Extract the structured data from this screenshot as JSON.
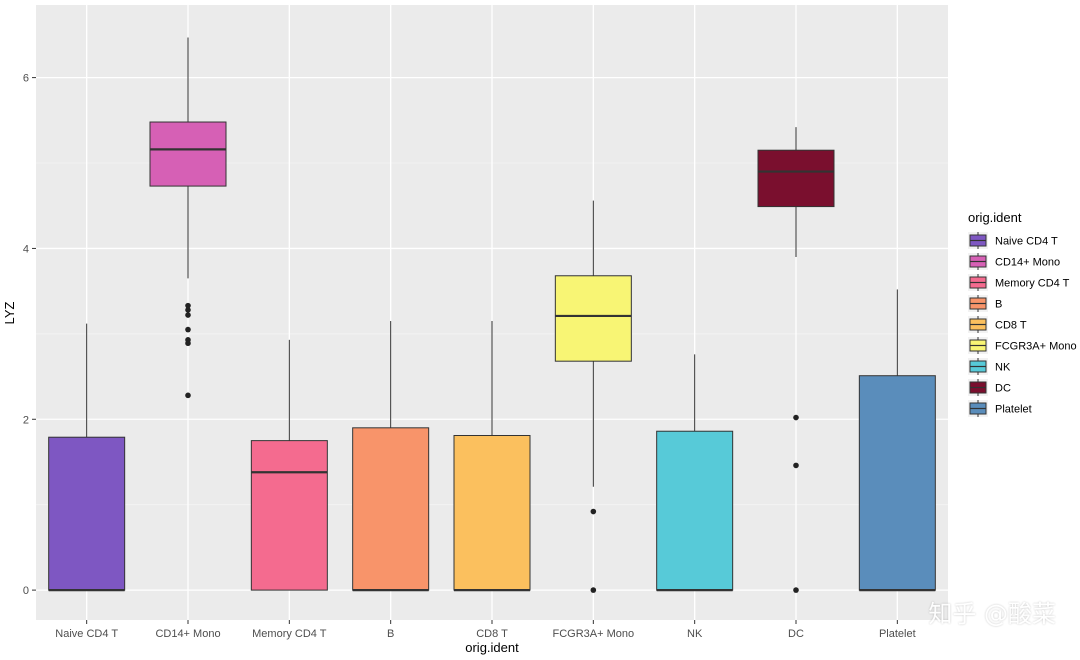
{
  "chart_data": {
    "type": "boxplot",
    "xlabel": "orig.ident",
    "ylabel": "LYZ",
    "ylim": [
      -0.35,
      6.85
    ],
    "yticks": [
      0,
      2,
      4,
      6
    ],
    "grid": true,
    "legend": {
      "title": "orig.ident",
      "placement": "right"
    },
    "categories": [
      "Naive CD4 T",
      "CD14+ Mono",
      "Memory CD4 T",
      "B",
      "CD8 T",
      "FCGR3A+ Mono",
      "NK",
      "DC",
      "Platelet"
    ],
    "colors": [
      "#7E57C2",
      "#D660B5",
      "#F46B8F",
      "#F8946A",
      "#FBC05E",
      "#F8F574",
      "#57CAD8",
      "#7A0F2E",
      "#5A8DBB"
    ],
    "boxes": [
      {
        "name": "Naive CD4 T",
        "lower_whisker": 0,
        "q1": 0,
        "median": 0,
        "q3": 1.79,
        "upper_whisker": 3.12,
        "outliers": []
      },
      {
        "name": "CD14+ Mono",
        "lower_whisker": 3.65,
        "q1": 4.73,
        "median": 5.16,
        "q3": 5.48,
        "upper_whisker": 6.47,
        "outliers": [
          3.33,
          3.28,
          3.22,
          3.05,
          2.93,
          2.89,
          2.28
        ]
      },
      {
        "name": "Memory CD4 T",
        "lower_whisker": 0,
        "q1": 0,
        "median": 1.38,
        "q3": 1.75,
        "upper_whisker": 2.93,
        "outliers": []
      },
      {
        "name": "B",
        "lower_whisker": 0,
        "q1": 0,
        "median": 0,
        "q3": 1.9,
        "upper_whisker": 3.15,
        "outliers": []
      },
      {
        "name": "CD8 T",
        "lower_whisker": 0,
        "q1": 0,
        "median": 0,
        "q3": 1.81,
        "upper_whisker": 3.15,
        "outliers": []
      },
      {
        "name": "FCGR3A+ Mono",
        "lower_whisker": 1.21,
        "q1": 2.68,
        "median": 3.21,
        "q3": 3.68,
        "upper_whisker": 4.56,
        "outliers": [
          0.92,
          0
        ]
      },
      {
        "name": "NK",
        "lower_whisker": 0,
        "q1": 0,
        "median": 0,
        "q3": 1.86,
        "upper_whisker": 2.76,
        "outliers": []
      },
      {
        "name": "DC",
        "lower_whisker": 3.9,
        "q1": 4.49,
        "median": 4.9,
        "q3": 5.15,
        "upper_whisker": 5.42,
        "outliers": [
          2.02,
          1.46,
          0
        ]
      },
      {
        "name": "Platelet",
        "lower_whisker": 0,
        "q1": 0,
        "median": 0,
        "q3": 2.51,
        "upper_whisker": 3.52,
        "outliers": []
      }
    ]
  },
  "watermark": "知乎 @酸菜"
}
